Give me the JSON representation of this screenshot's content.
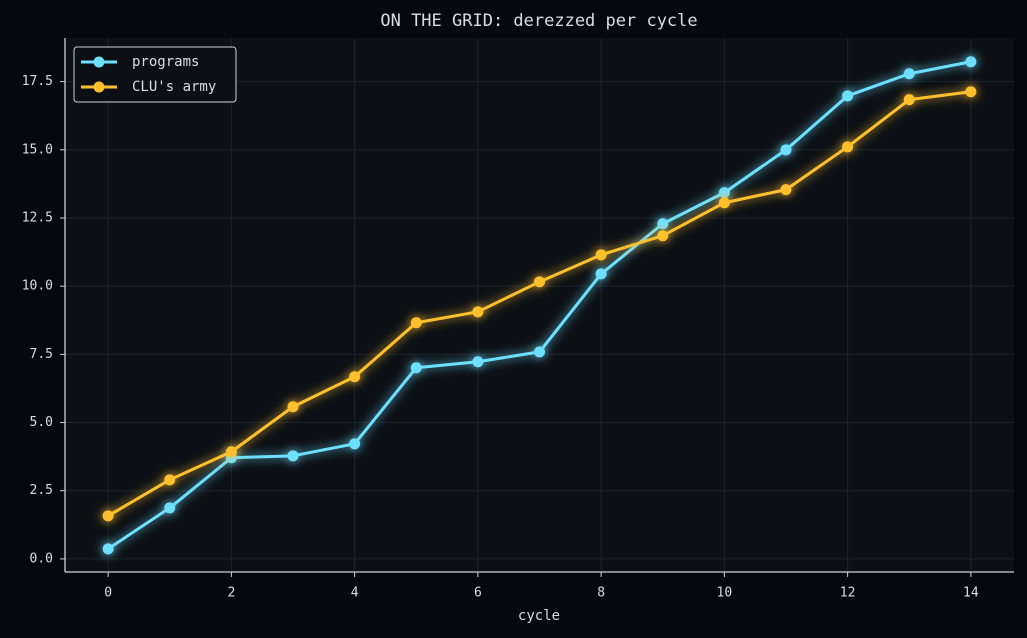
{
  "chart_data": {
    "type": "line",
    "title": "ON THE GRID: derezzed per cycle",
    "x_label": "cycle",
    "x": [
      0,
      1,
      2,
      3,
      4,
      5,
      6,
      7,
      8,
      9,
      10,
      11,
      12,
      13,
      14
    ],
    "series": [
      {
        "name": "programs",
        "color": "#6ee0ff",
        "values": [
          0.37,
          1.87,
          3.71,
          3.78,
          4.22,
          7.01,
          7.23,
          7.59,
          10.45,
          12.29,
          13.43,
          15.0,
          16.98,
          17.79,
          18.23
        ]
      },
      {
        "name": "CLU's army",
        "color": "#ffc02e",
        "values": [
          1.58,
          2.9,
          3.93,
          5.58,
          6.68,
          8.66,
          9.06,
          10.16,
          11.15,
          11.85,
          13.06,
          13.54,
          15.11,
          16.84,
          17.13
        ]
      }
    ],
    "xlim": [
      -0.7,
      14.7
    ],
    "ylim": [
      -0.48,
      19.1
    ],
    "xticks": [
      0,
      2,
      4,
      6,
      8,
      10,
      12,
      14
    ],
    "yticks": [
      {
        "value": 0,
        "label": "0.0"
      },
      2.5,
      {
        "value": 5,
        "label": "5.0"
      },
      7.5,
      {
        "value": 10,
        "label": "10.0"
      },
      12.5,
      {
        "value": 15,
        "label": "15.0"
      },
      17.5
    ],
    "grid": true,
    "legend": "upper left"
  }
}
